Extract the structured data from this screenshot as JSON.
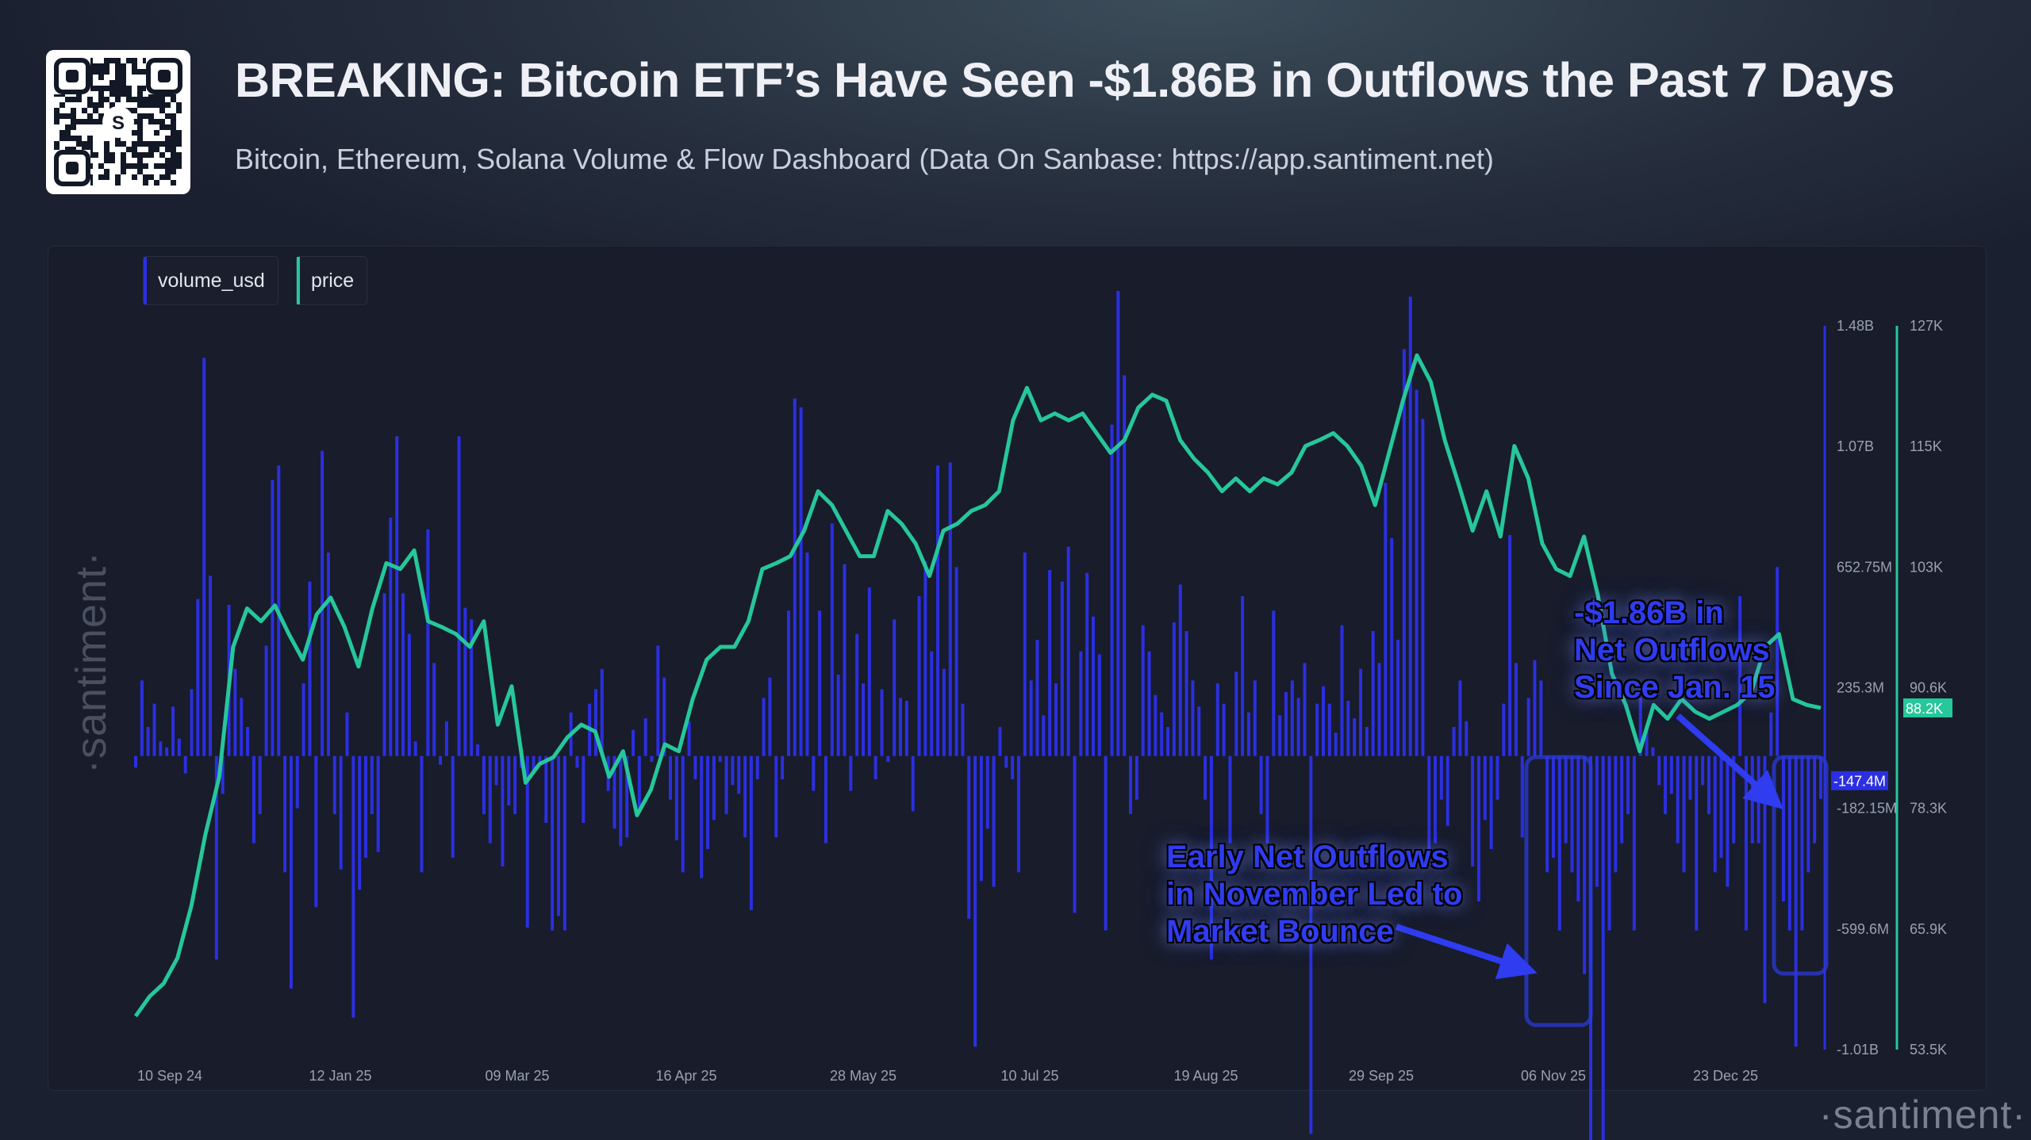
{
  "header": {
    "title": "BREAKING: Bitcoin ETF’s Have Seen -$1.86B in Outflows the Past 7 Days",
    "subtitle": "Bitcoin, Ethereum, Solana Volume & Flow Dashboard (Data On Sanbase: https://app.santiment.net)",
    "qr_logo_letter": "S"
  },
  "watermark": "·santiment·",
  "colors": {
    "volume": "#2b2fe0",
    "price": "#26c79a",
    "annotation": "#2f3cf0"
  },
  "chart_data": {
    "type": "bar+line",
    "legend": [
      "volume_usd",
      "price"
    ],
    "legend_placement": "top-left",
    "x_tick_labels": [
      "10 Sep 24",
      "12 Jan 25",
      "09 Mar 25",
      "16 Apr 25",
      "28 May 25",
      "10 Jul 25",
      "19 Aug 25",
      "29 Sep 25",
      "06 Nov 25",
      "23 Dec 25"
    ],
    "y_left_ticks": [
      "1.48B",
      "1.07B",
      "652.75M",
      "235.3M",
      "-182.15M",
      "-599.6M",
      "-1.01B"
    ],
    "y_left_range_millions": [
      -1010,
      1480
    ],
    "y_right_ticks": [
      "127K",
      "115K",
      "103K",
      "90.6K",
      "78.3K",
      "65.9K",
      "53.5K"
    ],
    "y_right_range_thousands": [
      53.5,
      127
    ],
    "last_volume_label": "-147.4M",
    "last_price_label": "88.2K",
    "series": [
      {
        "name": "volume_usd",
        "unit": "USD millions",
        "values": [
          -40,
          260,
          100,
          180,
          50,
          30,
          170,
          60,
          -60,
          230,
          540,
          1370,
          620,
          -700,
          -130,
          520,
          300,
          200,
          100,
          -300,
          -200,
          380,
          950,
          1000,
          -400,
          -800,
          -180,
          250,
          600,
          -520,
          1050,
          700,
          -200,
          -390,
          150,
          -900,
          -460,
          -350,
          -200,
          -330,
          560,
          820,
          1100,
          560,
          420,
          50,
          -400,
          780,
          320,
          -30,
          120,
          -350,
          1100,
          510,
          470,
          40,
          -200,
          -300,
          -100,
          -380,
          -170,
          -200,
          -40,
          -590,
          -60,
          -20,
          -230,
          -600,
          -550,
          -600,
          150,
          -40,
          -230,
          180,
          230,
          300,
          -120,
          -250,
          -310,
          -280,
          90,
          -180,
          130,
          -20,
          380,
          270,
          -150,
          -290,
          -400,
          120,
          -80,
          -420,
          -320,
          -220,
          -20,
          -200,
          -100,
          -130,
          -280,
          -530,
          -80,
          200,
          270,
          -280,
          -80,
          500,
          1230,
          1200,
          700,
          -120,
          500,
          -300,
          800,
          280,
          660,
          -120,
          420,
          250,
          580,
          -80,
          230,
          -20,
          470,
          200,
          190,
          -190,
          550,
          670,
          360,
          1000,
          300,
          1010,
          650,
          180,
          -560,
          -1000,
          -430,
          -250,
          -450,
          100,
          -40,
          -80,
          -400,
          700,
          260,
          400,
          140,
          640,
          250,
          600,
          720,
          -540,
          360,
          630,
          480,
          350,
          -600,
          1140,
          1600,
          1310,
          -200,
          -150,
          450,
          360,
          210,
          150,
          100,
          460,
          590,
          430,
          260,
          170,
          -150,
          -700,
          250,
          180,
          -300,
          290,
          550,
          150,
          260,
          -200,
          -300,
          500,
          140,
          220,
          260,
          200,
          320,
          -1300,
          180,
          240,
          180,
          80,
          450,
          190,
          130,
          300,
          100,
          430,
          320,
          940,
          750,
          400,
          1400,
          1580,
          1260,
          1160,
          -350,
          -300,
          -150,
          -240,
          100,
          260,
          120,
          -380,
          -500,
          -220,
          -320,
          -150,
          180,
          760,
          320,
          -280,
          200,
          330,
          260,
          -400,
          -350,
          -600,
          -300,
          -400,
          -500,
          -750,
          -1400,
          -450,
          -1350,
          -600,
          -400,
          -300,
          -200,
          -600,
          200,
          100,
          30,
          -100,
          -200,
          -130,
          -300,
          -400,
          -150,
          -600,
          -100,
          -200,
          -400,
          -350,
          -450,
          -300,
          550,
          -600,
          -300,
          -300,
          -850,
          150,
          650,
          -500,
          -600,
          -1000,
          -600,
          -400,
          -300,
          -147.4
        ]
      },
      {
        "name": "price",
        "unit": "USD thousands",
        "values": [
          56.9,
          58.9,
          60.2,
          62.8,
          68.1,
          75.3,
          81.2,
          94.4,
          98.3,
          97.0,
          98.6,
          95.7,
          93.1,
          97.7,
          99.4,
          96.4,
          92.4,
          98.3,
          102.9,
          102.3,
          104.2,
          97.0,
          96.4,
          95.7,
          94.4,
          97.0,
          86.5,
          90.4,
          80.6,
          82.5,
          83.2,
          85.2,
          86.5,
          85.8,
          81.2,
          83.8,
          77.3,
          79.9,
          84.5,
          83.8,
          89.1,
          93.1,
          94.4,
          94.4,
          97.0,
          102.3,
          102.9,
          103.6,
          106.2,
          110.2,
          108.8,
          106.2,
          103.6,
          103.6,
          108.2,
          106.9,
          104.9,
          101.6,
          106.2,
          106.9,
          108.2,
          108.8,
          110.2,
          117.4,
          120.7,
          117.4,
          118.1,
          117.4,
          118.1,
          116.1,
          114.1,
          115.4,
          118.7,
          120.0,
          119.4,
          115.4,
          113.5,
          112.1,
          110.2,
          111.5,
          110.2,
          111.5,
          110.9,
          112.1,
          114.8,
          115.4,
          116.1,
          114.8,
          112.8,
          108.8,
          114.1,
          119.4,
          124.0,
          121.3,
          115.4,
          110.9,
          106.2,
          110.2,
          105.6,
          114.8,
          111.5,
          104.9,
          102.3,
          101.6,
          105.6,
          99.6,
          91.7,
          88.5,
          83.8,
          88.5,
          87.1,
          89.1,
          87.8,
          87.1,
          87.8,
          88.5,
          89.8,
          94.4,
          95.7,
          89.1,
          88.5,
          88.2
        ]
      }
    ],
    "annotations": [
      {
        "text_lines": [
          "Early Net Outflows",
          "in November Led to",
          "Market Bounce"
        ]
      },
      {
        "text_lines": [
          "-$1.86B in",
          "Net Outflows",
          "Since Jan. 15"
        ]
      }
    ]
  }
}
